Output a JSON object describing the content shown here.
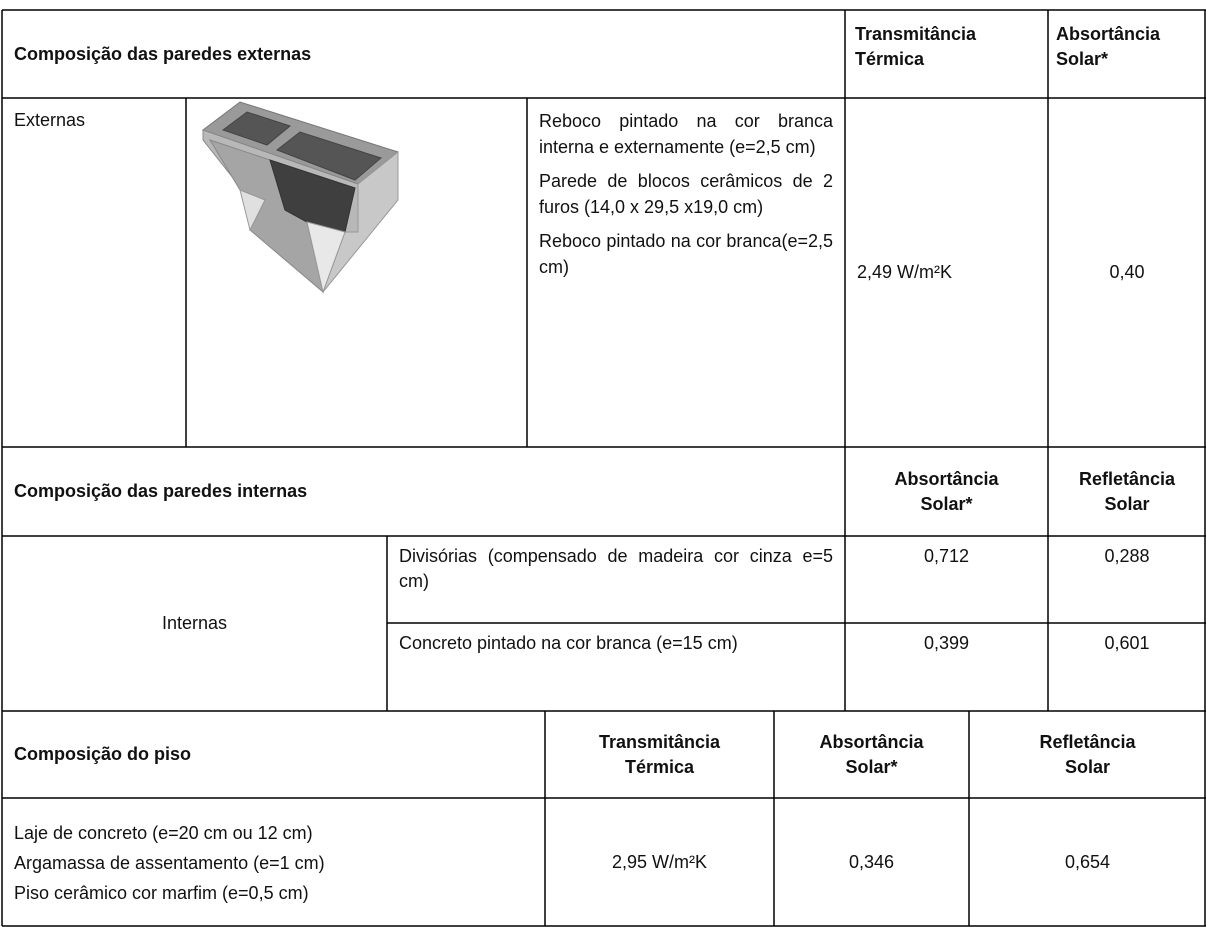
{
  "external_walls": {
    "title": "Composição das paredes externas",
    "headers": [
      "Transmitância Térmica",
      "Absortância Solar*"
    ],
    "label": "Externas",
    "layers": [
      "Reboco pintado na cor branca interna e externamente (e=2,5 cm)",
      "Parede de blocos cerâmicos de 2 furos (14,0 x 29,5 x19,0 cm)",
      "Reboco pintado na cor branca(e=2,5 cm)"
    ],
    "values": [
      "2,49 W/m²K",
      "0,40"
    ]
  },
  "internal_walls": {
    "title": "Composição das paredes internas",
    "headers": [
      "Absortância Solar*",
      "Refletância Solar"
    ],
    "label": "Internas",
    "rows": [
      [
        "Divisórias (compensado de madeira cor cinza e=5 cm)",
        "0,712",
        "0,288"
      ],
      [
        "Concreto pintado na cor branca (e=15 cm)",
        "0,399",
        "0,601"
      ]
    ]
  },
  "floor": {
    "title": "Composição do piso",
    "headers": [
      "Transmitância Térmica",
      "Absortância Solar*",
      "Refletância Solar"
    ],
    "layers": [
      "Laje de concreto (e=20 cm ou 12 cm)",
      "Argamassa de assentamento (e=1 cm)",
      "Piso cerâmico cor marfim (e=0,5 cm)"
    ],
    "values": [
      "2,95 W/m²K",
      "0,346",
      "0,654"
    ]
  }
}
